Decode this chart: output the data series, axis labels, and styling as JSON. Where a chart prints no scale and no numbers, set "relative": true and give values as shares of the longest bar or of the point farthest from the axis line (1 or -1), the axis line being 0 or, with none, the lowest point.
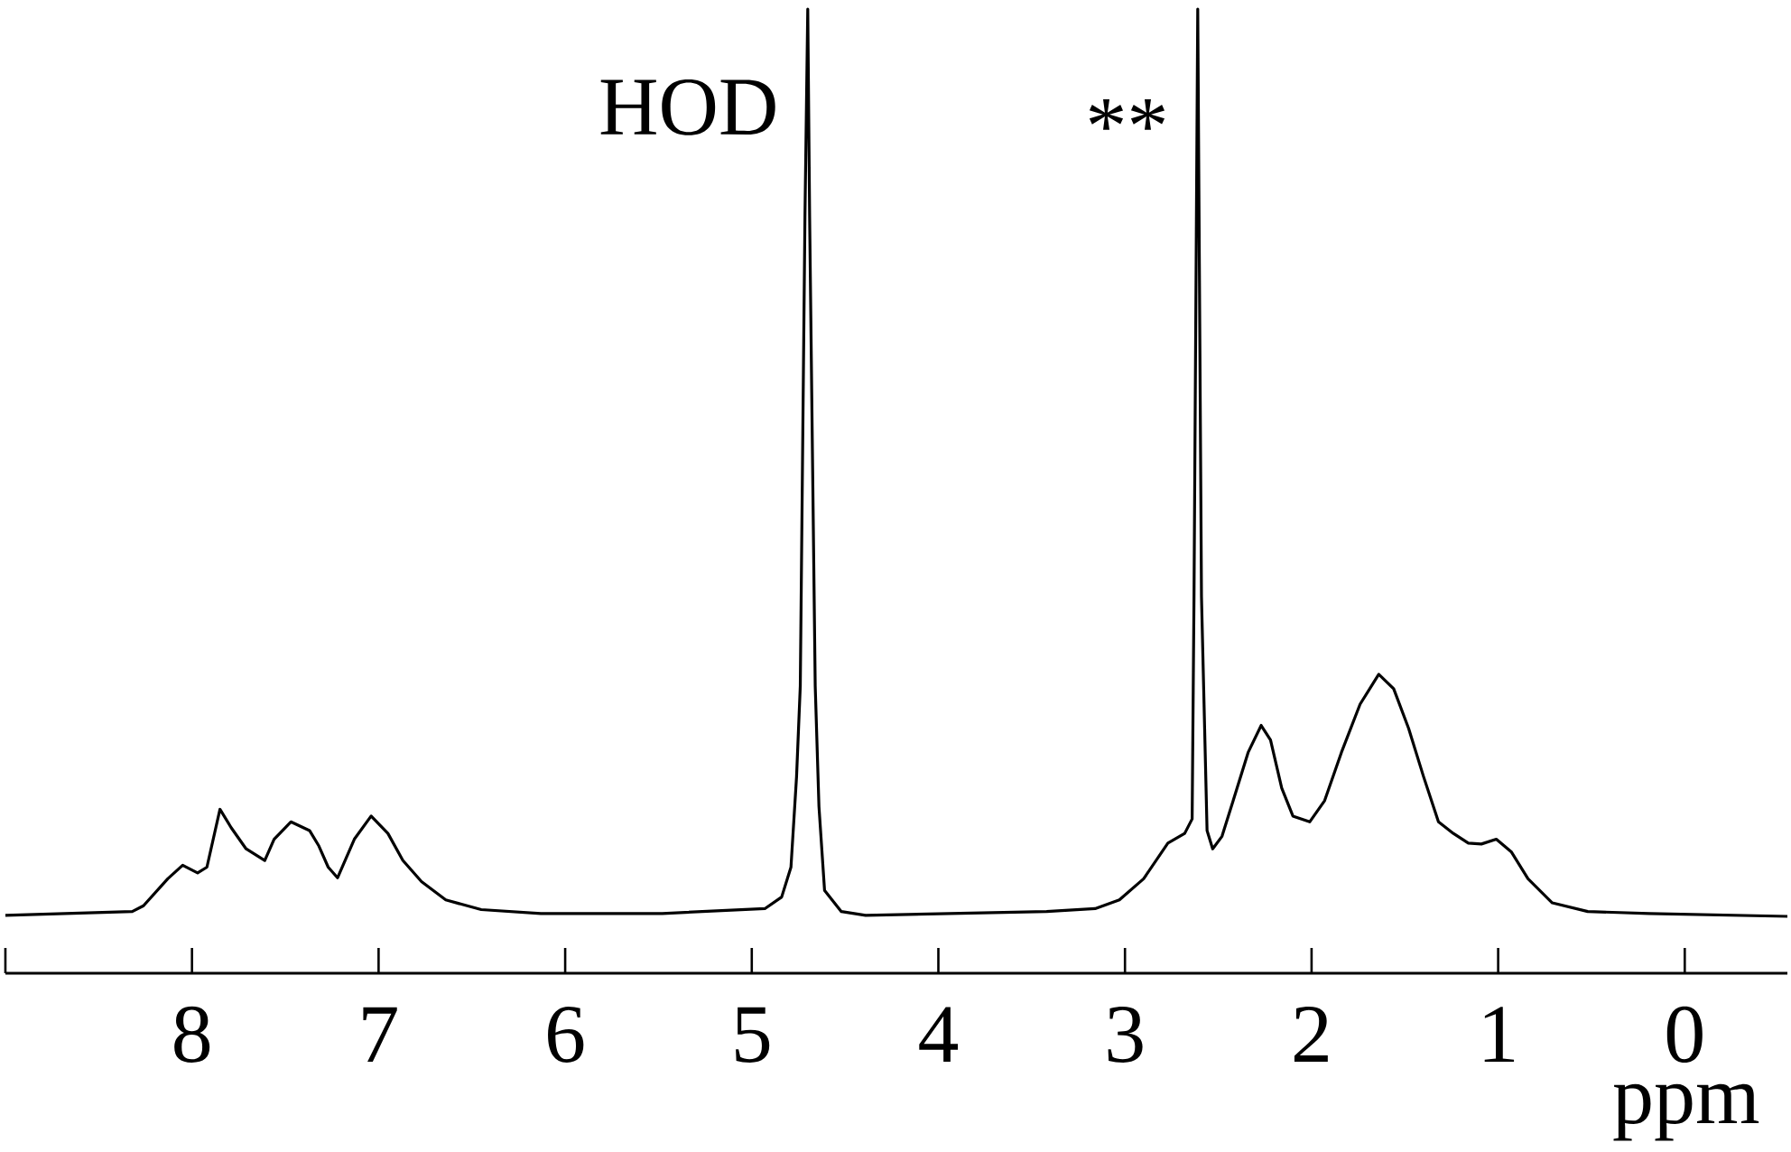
{
  "chart_data": {
    "type": "line",
    "xlabel": "ppm",
    "relative": true,
    "xlim": [
      9,
      -0.55
    ],
    "xticks": [
      {
        "value": 9,
        "label": null
      },
      8,
      7,
      6,
      5,
      4,
      3,
      2,
      1,
      0
    ],
    "x": [
      9.0,
      8.32,
      8.26,
      8.13,
      8.05,
      7.97,
      7.92,
      7.85,
      7.79,
      7.71,
      7.61,
      7.56,
      7.47,
      7.37,
      7.32,
      7.27,
      7.22,
      7.13,
      7.04,
      6.95,
      6.87,
      6.77,
      6.64,
      6.45,
      6.13,
      5.48,
      4.93,
      4.84,
      4.79,
      4.76,
      4.74,
      4.715,
      4.7,
      4.69,
      4.66,
      4.64,
      4.61,
      4.52,
      4.39,
      3.42,
      3.16,
      3.03,
      2.9,
      2.77,
      2.68,
      2.64,
      2.63,
      2.61,
      2.59,
      2.56,
      2.53,
      2.48,
      2.42,
      2.34,
      2.27,
      2.22,
      2.16,
      2.1,
      2.01,
      1.93,
      1.84,
      1.74,
      1.64,
      1.56,
      1.48,
      1.4,
      1.32,
      1.24,
      1.16,
      1.09,
      1.01,
      0.93,
      0.84,
      0.71,
      0.52,
      0.19,
      -0.55
    ],
    "series": [
      {
        "color": "#000000",
        "values": [
          0.06,
          0.064,
          0.07,
          0.098,
          0.112,
          0.104,
          0.11,
          0.17,
          0.151,
          0.129,
          0.117,
          0.139,
          0.157,
          0.148,
          0.132,
          0.11,
          0.099,
          0.139,
          0.163,
          0.145,
          0.117,
          0.095,
          0.076,
          0.066,
          0.062,
          0.062,
          0.067,
          0.079,
          0.11,
          0.204,
          0.298,
          0.785,
          1,
          0.785,
          0.298,
          0.173,
          0.086,
          0.064,
          0.06,
          0.064,
          0.067,
          0.076,
          0.098,
          0.135,
          0.145,
          0.16,
          0.391,
          1,
          0.391,
          0.148,
          0.129,
          0.142,
          0.179,
          0.229,
          0.257,
          0.242,
          0.192,
          0.163,
          0.157,
          0.179,
          0.229,
          0.279,
          0.31,
          0.295,
          0.254,
          0.204,
          0.157,
          0.145,
          0.135,
          0.134,
          0.139,
          0.126,
          0.098,
          0.073,
          0.064,
          0.062,
          0.059
        ]
      }
    ],
    "annotations": [
      {
        "text": "HOD",
        "x": 4.7,
        "y": 0.87
      },
      {
        "text": "**",
        "x": 2.61,
        "y": 0.85
      }
    ]
  }
}
